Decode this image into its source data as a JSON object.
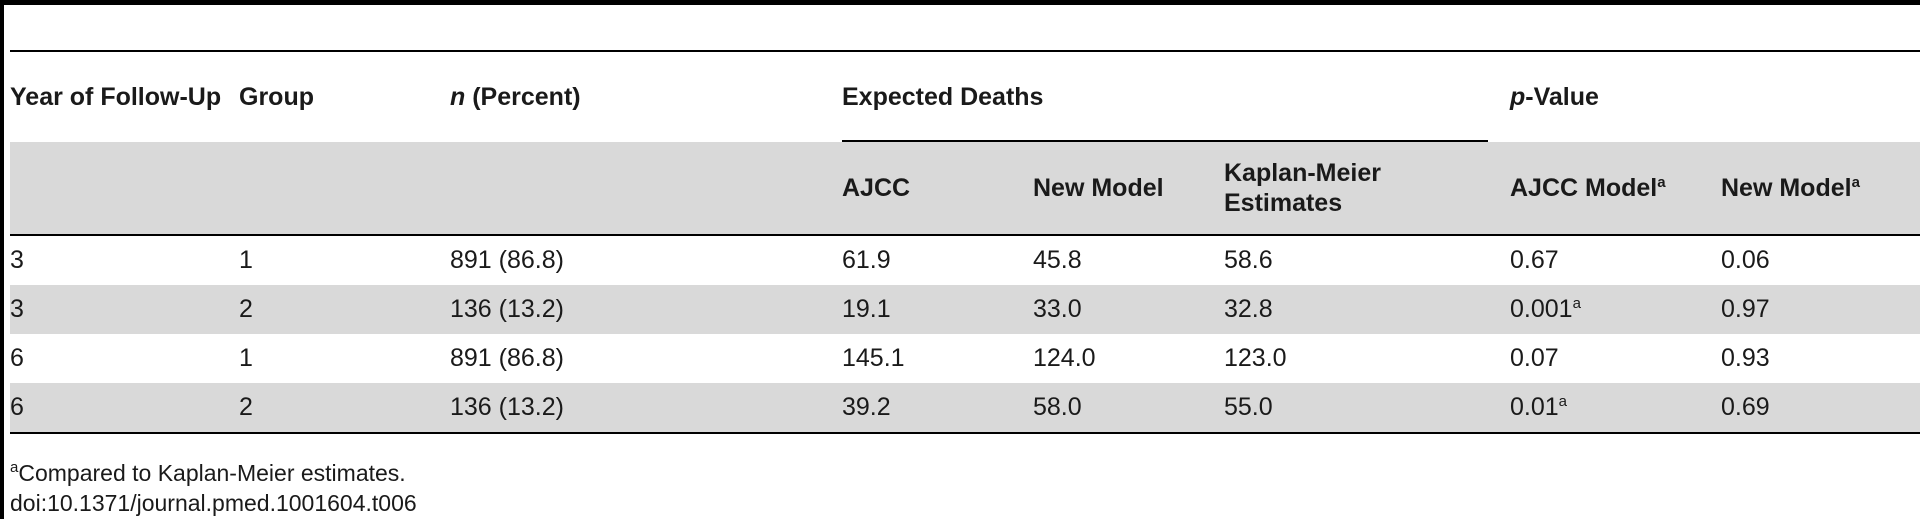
{
  "table": {
    "header": {
      "year": "Year of Follow-Up",
      "group": "Group",
      "n_italic": "n",
      "n_rest": " (Percent)",
      "expected_deaths": "Expected Deaths",
      "p_italic": "p",
      "p_rest": "-Value",
      "ajcc": "AJCC",
      "new_model": "New Model",
      "kaplan_meier": "Kaplan-Meier Estimates",
      "ajcc_model": "AJCC Model",
      "new_model_p": "New Model",
      "footnote_mark": "a"
    },
    "rows": [
      {
        "year": "3",
        "group": "1",
        "n": "891 (86.8)",
        "ajcc": "61.9",
        "new": "45.8",
        "km": "58.6",
        "p_ajcc": "0.67",
        "p_ajcc_mark": "",
        "p_new": "0.06"
      },
      {
        "year": "3",
        "group": "2",
        "n": "136 (13.2)",
        "ajcc": "19.1",
        "new": "33.0",
        "km": "32.8",
        "p_ajcc": "0.001",
        "p_ajcc_mark": "a",
        "p_new": "0.97"
      },
      {
        "year": "6",
        "group": "1",
        "n": "891 (86.8)",
        "ajcc": "145.1",
        "new": "124.0",
        "km": "123.0",
        "p_ajcc": "0.07",
        "p_ajcc_mark": "",
        "p_new": "0.93"
      },
      {
        "year": "6",
        "group": "2",
        "n": "136 (13.2)",
        "ajcc": "39.2",
        "new": "58.0",
        "km": "55.0",
        "p_ajcc": "0.01",
        "p_ajcc_mark": "a",
        "p_new": "0.69"
      }
    ]
  },
  "footnote": {
    "mark": "a",
    "text": "Compared to Kaplan-Meier estimates."
  },
  "doi": "doi:10.1371/journal.pmed.1001604.t006"
}
